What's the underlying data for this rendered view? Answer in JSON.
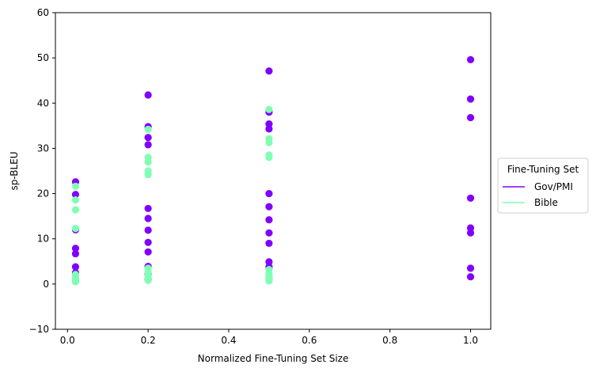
{
  "chart_data": {
    "type": "scatter",
    "xlabel": "Normalized Fine-Tuning Set Size",
    "ylabel": "sp-BLEU",
    "xlim": [
      -0.03,
      1.05
    ],
    "ylim": [
      -10,
      60
    ],
    "xticks": [
      0.0,
      0.2,
      0.4,
      0.6,
      0.8,
      1.0
    ],
    "xtick_labels": [
      "0.0",
      "0.2",
      "0.4",
      "0.6",
      "0.8",
      "1.0"
    ],
    "yticks": [
      -10,
      0,
      10,
      20,
      30,
      40,
      50,
      60
    ],
    "ytick_labels": [
      "−10",
      "0",
      "10",
      "20",
      "30",
      "40",
      "50",
      "60"
    ],
    "grid": false,
    "legend": {
      "title": "Fine-Tuning Set",
      "placement": "right-outside",
      "entries": [
        "Gov/PMI",
        "Bible"
      ]
    },
    "series": [
      {
        "name": "Gov/PMI",
        "color": "#8000ff",
        "points": [
          [
            0.02,
            22.6
          ],
          [
            0.02,
            19.8
          ],
          [
            0.02,
            12.0
          ],
          [
            0.02,
            7.9
          ],
          [
            0.02,
            6.7
          ],
          [
            0.02,
            3.8
          ],
          [
            0.02,
            2.5
          ],
          [
            0.02,
            1.2
          ],
          [
            0.02,
            0.6
          ],
          [
            0.2,
            41.8
          ],
          [
            0.2,
            34.8
          ],
          [
            0.2,
            32.4
          ],
          [
            0.2,
            30.8
          ],
          [
            0.2,
            16.7
          ],
          [
            0.2,
            14.5
          ],
          [
            0.2,
            11.9
          ],
          [
            0.2,
            9.2
          ],
          [
            0.2,
            7.1
          ],
          [
            0.2,
            3.9
          ],
          [
            0.2,
            2.2
          ],
          [
            0.2,
            1.0
          ],
          [
            0.5,
            47.1
          ],
          [
            0.5,
            38.0
          ],
          [
            0.5,
            35.4
          ],
          [
            0.5,
            34.3
          ],
          [
            0.5,
            20.0
          ],
          [
            0.5,
            17.1
          ],
          [
            0.5,
            14.2
          ],
          [
            0.5,
            11.3
          ],
          [
            0.5,
            9.0
          ],
          [
            0.5,
            4.9
          ],
          [
            0.5,
            3.8
          ],
          [
            0.5,
            1.2
          ],
          [
            1.0,
            49.6
          ],
          [
            1.0,
            40.9
          ],
          [
            1.0,
            36.8
          ],
          [
            1.0,
            19.0
          ],
          [
            1.0,
            12.4
          ],
          [
            1.0,
            11.3
          ],
          [
            1.0,
            3.5
          ],
          [
            1.0,
            1.6
          ]
        ]
      },
      {
        "name": "Bible",
        "color": "#80ffb4",
        "points": [
          [
            0.02,
            21.6
          ],
          [
            0.02,
            18.6
          ],
          [
            0.02,
            16.4
          ],
          [
            0.02,
            12.3
          ],
          [
            0.02,
            2.1
          ],
          [
            0.02,
            1.5
          ],
          [
            0.02,
            1.0
          ],
          [
            0.02,
            0.5
          ],
          [
            0.2,
            34.2
          ],
          [
            0.2,
            28.0
          ],
          [
            0.2,
            27.0
          ],
          [
            0.2,
            25.0
          ],
          [
            0.2,
            24.2
          ],
          [
            0.2,
            3.5
          ],
          [
            0.2,
            2.6
          ],
          [
            0.2,
            1.9
          ],
          [
            0.2,
            1.4
          ],
          [
            0.2,
            0.8
          ],
          [
            0.5,
            38.6
          ],
          [
            0.5,
            32.1
          ],
          [
            0.5,
            31.3
          ],
          [
            0.5,
            28.5
          ],
          [
            0.5,
            28.0
          ],
          [
            0.5,
            3.2
          ],
          [
            0.5,
            2.3
          ],
          [
            0.5,
            1.6
          ],
          [
            0.5,
            1.1
          ],
          [
            0.5,
            0.7
          ]
        ]
      }
    ]
  }
}
